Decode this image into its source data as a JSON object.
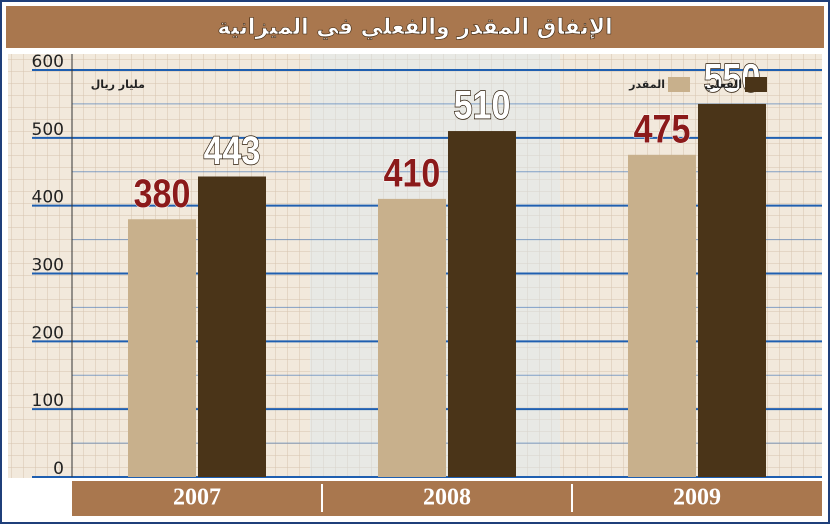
{
  "chart_data": {
    "type": "bar",
    "title": "الإنفاق المقدر والفعلي في الميزانية",
    "y_label": "مليار ريال",
    "categories": [
      "2007",
      "2008",
      "2009"
    ],
    "series": [
      {
        "name": "المقدر",
        "color": "#c8b08c",
        "values": [
          380,
          410,
          475
        ]
      },
      {
        "name": "الفعلي",
        "color": "#4a3418",
        "values": [
          443,
          510,
          550
        ]
      }
    ],
    "ylim": [
      0,
      600
    ],
    "yticks": [
      0,
      100,
      200,
      300,
      400,
      500,
      600
    ],
    "grid": true
  }
}
